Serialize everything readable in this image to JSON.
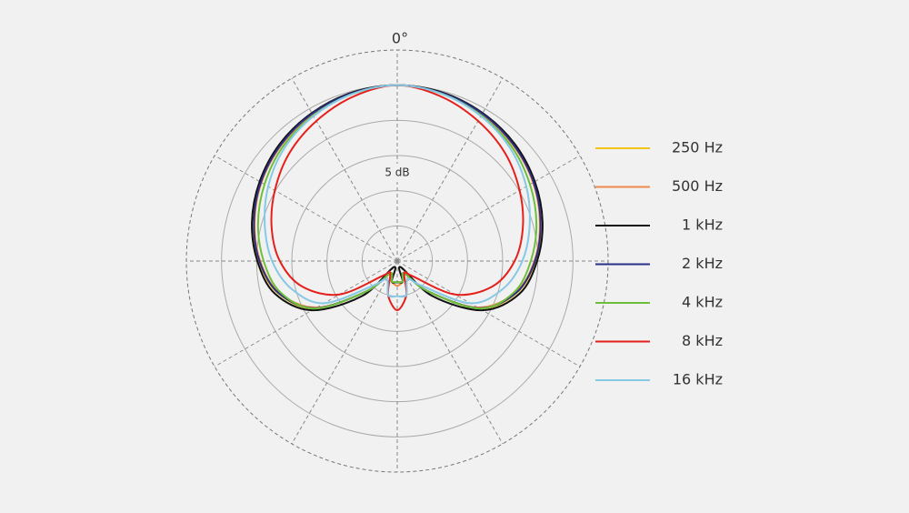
{
  "chart_data": {
    "type": "polar",
    "angle_label": "0°",
    "r_label": "5 dB",
    "theta": [
      0,
      15,
      30,
      45,
      60,
      75,
      90,
      105,
      120,
      135,
      150,
      165,
      180,
      195,
      210,
      225,
      240,
      255,
      270,
      285,
      300,
      315,
      330,
      345
    ],
    "thetaticks": [
      0,
      30,
      60,
      90,
      120,
      150,
      180,
      210,
      240,
      270,
      300,
      330
    ],
    "rlim": [
      -25,
      5
    ],
    "rticks": [
      -20,
      -15,
      -10,
      -5,
      0,
      5
    ],
    "legend": "right",
    "series": [
      {
        "name": "250 Hz",
        "color": "#f2c318",
        "values": [
          0,
          -0.3,
          -0.8,
          -1.6,
          -2.6,
          -3.8,
          -5.3,
          -7.4,
          -11.5,
          -19,
          -23,
          -22,
          -21.5,
          -22,
          -23,
          -19,
          -11.5,
          -7.4,
          -5.3,
          -3.8,
          -2.6,
          -1.6,
          -0.8,
          -0.3
        ]
      },
      {
        "name": "500 Hz",
        "color": "#f08a4b",
        "values": [
          0,
          -0.3,
          -0.9,
          -1.7,
          -2.7,
          -4,
          -5.5,
          -7.6,
          -11.8,
          -19,
          -23,
          -22,
          -21.5,
          -22,
          -23,
          -19,
          -11.8,
          -7.6,
          -5.5,
          -4,
          -2.7,
          -1.7,
          -0.9,
          -0.3
        ]
      },
      {
        "name": "1 kHz",
        "color": "#111111",
        "values": [
          0,
          -0.2,
          -0.7,
          -1.4,
          -2.4,
          -3.6,
          -5.1,
          -7,
          -11,
          -18,
          -24,
          -22,
          -22,
          -22,
          -24,
          -18,
          -11,
          -7,
          -5.1,
          -3.6,
          -2.4,
          -1.4,
          -0.7,
          -0.2
        ]
      },
      {
        "name": "2 kHz",
        "color": "#2b2f86",
        "values": [
          0,
          -0.3,
          -0.8,
          -1.6,
          -2.6,
          -3.9,
          -5.4,
          -7.5,
          -11.6,
          -19,
          -23,
          -22,
          -22,
          -22,
          -23,
          -19,
          -11.6,
          -7.5,
          -5.4,
          -3.9,
          -2.6,
          -1.6,
          -0.8,
          -0.3
        ]
      },
      {
        "name": "4 kHz",
        "color": "#6cbf3a",
        "values": [
          0,
          -0.4,
          -1.1,
          -2,
          -3.2,
          -4.5,
          -6,
          -7.8,
          -11.5,
          -19,
          -23,
          -22,
          -22,
          -22,
          -23,
          -19,
          -11.5,
          -7.8,
          -6,
          -4.5,
          -3.2,
          -2,
          -1.1,
          -0.4
        ]
      },
      {
        "name": "8 kHz",
        "color": "#e3201b",
        "values": [
          0,
          -0.8,
          -2,
          -3.3,
          -4.9,
          -6.5,
          -8.3,
          -11,
          -15.5,
          -22,
          -23,
          -20,
          -18,
          -20,
          -23,
          -22,
          -15.5,
          -11,
          -8.3,
          -6.5,
          -4.9,
          -3.3,
          -2,
          -0.8
        ]
      },
      {
        "name": "16 kHz",
        "color": "#86c8e6",
        "values": [
          0,
          -0.4,
          -1.2,
          -2.3,
          -3.8,
          -5.5,
          -7.2,
          -9.5,
          -13,
          -20,
          -22,
          -20,
          -20,
          -20,
          -22,
          -20,
          -13,
          -9.5,
          -7.2,
          -5.5,
          -3.8,
          -2.3,
          -1.2,
          -0.4
        ]
      }
    ]
  }
}
